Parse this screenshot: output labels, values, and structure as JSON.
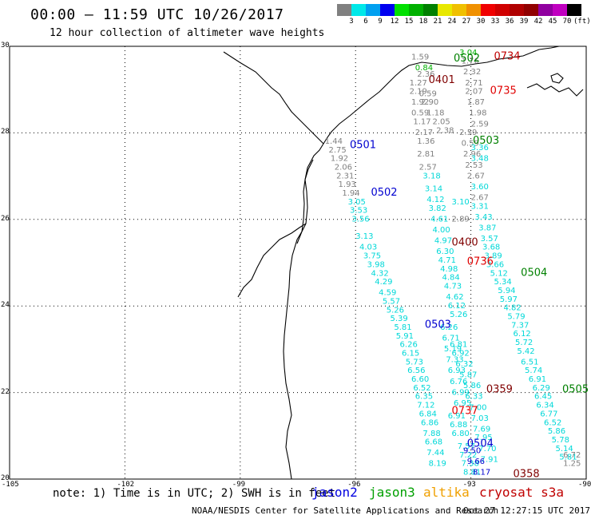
{
  "title": "00:00 – 11:59 UTC 10/26/2017",
  "subtitle": "12 hour collection of altimeter wave heights",
  "legend": {
    "colors": [
      "#808080",
      "#00e8e8",
      "#00a0f0",
      "#0000f0",
      "#00e000",
      "#00b000",
      "#008000",
      "#e8e800",
      "#f0c000",
      "#f09000",
      "#f00000",
      "#d00000",
      "#b00000",
      "#900000",
      "#9000a0",
      "#c000c0",
      "#000000"
    ],
    "labels": [
      "3",
      "6",
      "9",
      "12",
      "15",
      "18",
      "21",
      "24",
      "27",
      "30",
      "33",
      "36",
      "39",
      "42",
      "45",
      "70"
    ],
    "unit": "(ft)"
  },
  "axes": {
    "lat_labels": [
      "30",
      "28",
      "26",
      "24",
      "22",
      "20"
    ],
    "lon_labels": [
      "-105",
      "-102",
      "-99",
      "-96",
      "-93",
      "-90"
    ]
  },
  "note": "note: 1) Time is in UTC; 2) SWH is in feet",
  "satellites": [
    {
      "name": "jason2",
      "color": "#0000e0"
    },
    {
      "name": "jason3",
      "color": "#00a000"
    },
    {
      "name": "altika",
      "color": "#f0a000"
    },
    {
      "name": "cryosat s3a",
      "color": "#c00000"
    }
  ],
  "footer_left": "NOAA/NESDIS Center for Satellite Applications and Research",
  "footer_right": "Oct 27 12:27:15 UTC 2017",
  "passes": [
    {
      "label": "0502",
      "lon": -93.45,
      "lat": 29.65,
      "color": "#008000"
    },
    {
      "label": "0734",
      "lon": -92.4,
      "lat": 29.7,
      "color": "#c00000"
    },
    {
      "label": "0401",
      "lon": -94.1,
      "lat": 29.15,
      "color": "#800000"
    },
    {
      "label": "0735",
      "lon": -92.5,
      "lat": 28.9,
      "color": "#e00000"
    },
    {
      "label": "0501",
      "lon": -96.15,
      "lat": 27.65,
      "color": "#0000d0"
    },
    {
      "label": "0503",
      "lon": -92.95,
      "lat": 27.75,
      "color": "#008000"
    },
    {
      "label": "0502",
      "lon": -95.6,
      "lat": 26.55,
      "color": "#0000d0"
    },
    {
      "label": "0400",
      "lon": -93.5,
      "lat": 25.4,
      "color": "#800000"
    },
    {
      "label": "0736",
      "lon": -93.1,
      "lat": 24.95,
      "color": "#e00000"
    },
    {
      "label": "0504",
      "lon": -91.7,
      "lat": 24.7,
      "color": "#008000"
    },
    {
      "label": "0503",
      "lon": -94.2,
      "lat": 23.5,
      "color": "#0000d0"
    },
    {
      "label": "0359",
      "lon": -92.6,
      "lat": 22.0,
      "color": "#800000"
    },
    {
      "label": "0505",
      "lon": -90.2,
      "lat": 22.0,
      "color": "#008000"
    },
    {
      "label": "0737",
      "lon": -93.5,
      "lat": 21.5,
      "color": "#e00000"
    },
    {
      "label": "0504",
      "lon": -93.1,
      "lat": 20.75,
      "color": "#0000d0"
    },
    {
      "label": "0358",
      "lon": -91.9,
      "lat": 20.05,
      "color": "#800000"
    }
  ],
  "tracks": [
    {
      "color": "#808080",
      "points": [
        {
          "lon": -96.8,
          "lat": 27.75,
          "v": "1.44"
        },
        {
          "lon": -96.7,
          "lat": 27.55,
          "v": "2.75"
        },
        {
          "lon": -96.65,
          "lat": 27.35,
          "v": "1.92"
        },
        {
          "lon": -96.55,
          "lat": 27.15,
          "v": "2.06"
        },
        {
          "lon": -96.5,
          "lat": 26.95,
          "v": "2.31"
        },
        {
          "lon": -96.45,
          "lat": 26.75,
          "v": "1.93"
        },
        {
          "lon": -96.35,
          "lat": 26.55,
          "v": "1.94"
        }
      ]
    },
    {
      "color": "#00d8d8",
      "points": [
        {
          "lon": -96.2,
          "lat": 26.35,
          "v": "3.05"
        },
        {
          "lon": -96.15,
          "lat": 26.15,
          "v": "3.53"
        },
        {
          "lon": -96.1,
          "lat": 25.95,
          "v": "3.56"
        },
        {
          "lon": -96.0,
          "lat": 25.55,
          "v": "3.13"
        },
        {
          "lon": -95.9,
          "lat": 25.3,
          "v": "4.03"
        },
        {
          "lon": -95.8,
          "lat": 25.1,
          "v": "3.75"
        },
        {
          "lon": -95.7,
          "lat": 24.9,
          "v": "3.98"
        },
        {
          "lon": -95.6,
          "lat": 24.7,
          "v": "4.32"
        },
        {
          "lon": -95.5,
          "lat": 24.5,
          "v": "4.29"
        },
        {
          "lon": -95.4,
          "lat": 24.25,
          "v": "4.59"
        },
        {
          "lon": -95.3,
          "lat": 24.05,
          "v": "5.57"
        },
        {
          "lon": -95.2,
          "lat": 23.85,
          "v": "5.26"
        },
        {
          "lon": -95.1,
          "lat": 23.65,
          "v": "5.39"
        },
        {
          "lon": -95.0,
          "lat": 23.45,
          "v": "5.81"
        },
        {
          "lon": -94.95,
          "lat": 23.25,
          "v": "5.91"
        },
        {
          "lon": -94.85,
          "lat": 23.05,
          "v": "6.26"
        },
        {
          "lon": -94.8,
          "lat": 22.85,
          "v": "6.15"
        },
        {
          "lon": -94.7,
          "lat": 22.65,
          "v": "5.73"
        },
        {
          "lon": -94.65,
          "lat": 22.45,
          "v": "6.56"
        },
        {
          "lon": -94.55,
          "lat": 22.25,
          "v": "6.60"
        },
        {
          "lon": -94.5,
          "lat": 22.05,
          "v": "6.52"
        },
        {
          "lon": -94.45,
          "lat": 21.85,
          "v": "6.35"
        },
        {
          "lon": -94.4,
          "lat": 21.65,
          "v": "7.12"
        },
        {
          "lon": -94.35,
          "lat": 21.45,
          "v": "6.84"
        },
        {
          "lon": -94.3,
          "lat": 21.25,
          "v": "6.86"
        },
        {
          "lon": -94.25,
          "lat": 21.0,
          "v": "7.88"
        },
        {
          "lon": -94.2,
          "lat": 20.8,
          "v": "6.68"
        },
        {
          "lon": -94.15,
          "lat": 20.55,
          "v": "7.44"
        },
        {
          "lon": -94.1,
          "lat": 20.3,
          "v": "8.19"
        }
      ]
    },
    {
      "color": "#808080",
      "points": [
        {
          "lon": -94.55,
          "lat": 29.7,
          "v": "1.59"
        },
        {
          "lon": -94.4,
          "lat": 29.3,
          "v": "2.36"
        },
        {
          "lon": -94.6,
          "lat": 29.1,
          "v": "1.27"
        },
        {
          "lon": -94.6,
          "lat": 28.9,
          "v": "2.19"
        },
        {
          "lon": -94.35,
          "lat": 28.85,
          "v": "0.59"
        },
        {
          "lon": -94.55,
          "lat": 28.65,
          "v": "1.92"
        },
        {
          "lon": -94.3,
          "lat": 28.65,
          "v": "2.90"
        },
        {
          "lon": -94.55,
          "lat": 28.4,
          "v": "0.59"
        },
        {
          "lon": -94.15,
          "lat": 28.4,
          "v": "1.18"
        },
        {
          "lon": -94.5,
          "lat": 28.2,
          "v": "1.17"
        },
        {
          "lon": -94.0,
          "lat": 28.2,
          "v": "2.05"
        },
        {
          "lon": -94.45,
          "lat": 27.95,
          "v": "2.17"
        },
        {
          "lon": -93.9,
          "lat": 28.0,
          "v": "2.38"
        },
        {
          "lon": -94.4,
          "lat": 27.75,
          "v": "1.36"
        },
        {
          "lon": -94.4,
          "lat": 27.45,
          "v": "2.81"
        },
        {
          "lon": -94.35,
          "lat": 27.15,
          "v": "2.57"
        }
      ]
    },
    {
      "color": "#00d8d8",
      "points": [
        {
          "lon": -94.25,
          "lat": 26.95,
          "v": "3.18"
        },
        {
          "lon": -94.2,
          "lat": 26.65,
          "v": "3.14"
        },
        {
          "lon": -94.15,
          "lat": 26.4,
          "v": "4.12"
        },
        {
          "lon": -94.1,
          "lat": 26.2,
          "v": "3.82"
        },
        {
          "lon": -94.05,
          "lat": 25.95,
          "v": "4.61"
        },
        {
          "lon": -94.0,
          "lat": 25.7,
          "v": "4.00"
        },
        {
          "lon": -93.95,
          "lat": 25.45,
          "v": "4.97"
        },
        {
          "lon": -93.9,
          "lat": 25.2,
          "v": "6.30"
        },
        {
          "lon": -93.85,
          "lat": 25.0,
          "v": "4.71"
        },
        {
          "lon": -93.8,
          "lat": 24.8,
          "v": "4.98"
        },
        {
          "lon": -93.75,
          "lat": 24.6,
          "v": "4.84"
        },
        {
          "lon": -93.7,
          "lat": 24.4,
          "v": "4.73"
        },
        {
          "lon": -93.65,
          "lat": 24.15,
          "v": "4.62"
        },
        {
          "lon": -93.6,
          "lat": 23.95,
          "v": "6.12"
        },
        {
          "lon": -93.55,
          "lat": 23.75,
          "v": "5.26"
        },
        {
          "lon": -93.8,
          "lat": 23.45,
          "v": "6.26"
        },
        {
          "lon": -93.75,
          "lat": 23.2,
          "v": "6.71"
        },
        {
          "lon": -93.7,
          "lat": 22.95,
          "v": "5.19"
        },
        {
          "lon": -93.65,
          "lat": 22.7,
          "v": "7.33"
        },
        {
          "lon": -93.6,
          "lat": 22.45,
          "v": "6.93"
        },
        {
          "lon": -93.55,
          "lat": 22.2,
          "v": "6.76"
        },
        {
          "lon": -93.5,
          "lat": 21.95,
          "v": "6.99"
        },
        {
          "lon": -93.45,
          "lat": 21.7,
          "v": "6.95"
        },
        {
          "lon": -93.6,
          "lat": 21.4,
          "v": "6.91"
        },
        {
          "lon": -93.55,
          "lat": 21.2,
          "v": "6.88"
        },
        {
          "lon": -93.5,
          "lat": 21.0,
          "v": "6.80"
        },
        {
          "lon": -93.35,
          "lat": 20.7,
          "v": "7.57"
        },
        {
          "lon": -93.3,
          "lat": 20.5,
          "v": "7.22"
        },
        {
          "lon": -93.25,
          "lat": 20.3,
          "v": "7.38"
        },
        {
          "lon": -93.2,
          "lat": 20.1,
          "v": "8.81"
        }
      ]
    },
    {
      "color": "#808080",
      "points": [
        {
          "lon": -93.25,
          "lat": 29.6,
          "v": "1.76"
        },
        {
          "lon": -93.2,
          "lat": 29.35,
          "v": "2.32"
        },
        {
          "lon": -93.15,
          "lat": 29.1,
          "v": "2.71"
        },
        {
          "lon": -93.15,
          "lat": 28.9,
          "v": "2.07"
        },
        {
          "lon": -93.1,
          "lat": 28.65,
          "v": "1.87"
        },
        {
          "lon": -93.05,
          "lat": 28.4,
          "v": "1.98"
        },
        {
          "lon": -93.0,
          "lat": 28.15,
          "v": "2.59"
        },
        {
          "lon": -93.3,
          "lat": 27.95,
          "v": "2.59"
        },
        {
          "lon": -93.25,
          "lat": 27.7,
          "v": "0.59"
        },
        {
          "lon": -93.2,
          "lat": 27.45,
          "v": "2.96"
        },
        {
          "lon": -93.15,
          "lat": 27.2,
          "v": "2.53"
        },
        {
          "lon": -93.1,
          "lat": 26.95,
          "v": "2.67"
        },
        {
          "lon": -93.0,
          "lat": 26.45,
          "v": "2.67"
        },
        {
          "lon": -93.5,
          "lat": 25.95,
          "v": "2.89"
        }
      ]
    },
    {
      "color": "#00d8d8",
      "points": [
        {
          "lon": -93.0,
          "lat": 27.6,
          "v": "3.36"
        },
        {
          "lon": -93.0,
          "lat": 27.35,
          "v": "3.48"
        },
        {
          "lon": -93.0,
          "lat": 26.7,
          "v": "3.60"
        },
        {
          "lon": -93.5,
          "lat": 26.35,
          "v": "3.10"
        },
        {
          "lon": -93.0,
          "lat": 26.25,
          "v": "3.31"
        },
        {
          "lon": -92.9,
          "lat": 26.0,
          "v": "3.43"
        },
        {
          "lon": -92.8,
          "lat": 25.75,
          "v": "3.87"
        },
        {
          "lon": -92.75,
          "lat": 25.5,
          "v": "3.57"
        },
        {
          "lon": -92.7,
          "lat": 25.3,
          "v": "3.68"
        },
        {
          "lon": -92.65,
          "lat": 25.1,
          "v": "3.89"
        },
        {
          "lon": -92.6,
          "lat": 24.9,
          "v": "3.66"
        },
        {
          "lon": -92.5,
          "lat": 24.7,
          "v": "5.12"
        },
        {
          "lon": -92.4,
          "lat": 24.5,
          "v": "5.34"
        },
        {
          "lon": -92.3,
          "lat": 24.3,
          "v": "5.94"
        },
        {
          "lon": -92.25,
          "lat": 24.1,
          "v": "5.97"
        },
        {
          "lon": -92.15,
          "lat": 23.9,
          "v": "4.82"
        },
        {
          "lon": -92.05,
          "lat": 23.7,
          "v": "5.79"
        },
        {
          "lon": -91.95,
          "lat": 23.5,
          "v": "7.37"
        },
        {
          "lon": -91.9,
          "lat": 23.3,
          "v": "6.12"
        },
        {
          "lon": -91.85,
          "lat": 23.1,
          "v": "5.72"
        },
        {
          "lon": -91.8,
          "lat": 22.9,
          "v": "5.42"
        },
        {
          "lon": -91.7,
          "lat": 22.65,
          "v": "6.51"
        },
        {
          "lon": -91.6,
          "lat": 22.45,
          "v": "5.74"
        },
        {
          "lon": -91.5,
          "lat": 22.25,
          "v": "6.91"
        },
        {
          "lon": -91.4,
          "lat": 22.05,
          "v": "6.29"
        },
        {
          "lon": -91.35,
          "lat": 21.85,
          "v": "6.45"
        },
        {
          "lon": -91.3,
          "lat": 21.65,
          "v": "6.34"
        },
        {
          "lon": -91.2,
          "lat": 21.45,
          "v": "6.77"
        },
        {
          "lon": -91.1,
          "lat": 21.25,
          "v": "6.52"
        },
        {
          "lon": -91.0,
          "lat": 21.05,
          "v": "5.86"
        },
        {
          "lon": -90.9,
          "lat": 20.85,
          "v": "5.78"
        },
        {
          "lon": -90.8,
          "lat": 20.65,
          "v": "5.14"
        },
        {
          "lon": -90.7,
          "lat": 20.45,
          "v": "5.81"
        }
      ]
    },
    {
      "color": "#00d8d8",
      "points": [
        {
          "lon": -93.55,
          "lat": 23.05,
          "v": "6.81"
        },
        {
          "lon": -93.5,
          "lat": 22.85,
          "v": "6.92"
        },
        {
          "lon": -93.4,
          "lat": 22.6,
          "v": "6.32"
        },
        {
          "lon": -93.3,
          "lat": 22.35,
          "v": "5.87"
        },
        {
          "lon": -93.2,
          "lat": 22.1,
          "v": "5.86"
        },
        {
          "lon": -93.15,
          "lat": 21.85,
          "v": "6.33"
        },
        {
          "lon": -93.05,
          "lat": 21.6,
          "v": "7.00"
        },
        {
          "lon": -93.0,
          "lat": 21.35,
          "v": "7.03"
        },
        {
          "lon": -92.95,
          "lat": 21.1,
          "v": "7.69"
        },
        {
          "lon": -92.9,
          "lat": 20.9,
          "v": "7.95"
        },
        {
          "lon": -92.8,
          "lat": 20.65,
          "v": "7.70"
        },
        {
          "lon": -92.75,
          "lat": 20.4,
          "v": "7.91"
        }
      ]
    },
    {
      "color": "#0000d0",
      "points": [
        {
          "lon": -93.2,
          "lat": 20.6,
          "v": "9.50"
        },
        {
          "lon": -93.1,
          "lat": 20.35,
          "v": "9.66"
        },
        {
          "lon": -92.95,
          "lat": 20.1,
          "v": "8.17"
        }
      ]
    },
    {
      "color": "#808080",
      "points": [
        {
          "lon": -90.6,
          "lat": 20.5,
          "v": "6.72"
        },
        {
          "lon": -90.6,
          "lat": 20.3,
          "v": "1.25"
        }
      ]
    },
    {
      "color": "#00b000",
      "points": [
        {
          "lon": -94.45,
          "lat": 29.45,
          "v": "0.84"
        },
        {
          "lon": -93.3,
          "lat": 29.8,
          "v": "3.04"
        }
      ]
    }
  ]
}
